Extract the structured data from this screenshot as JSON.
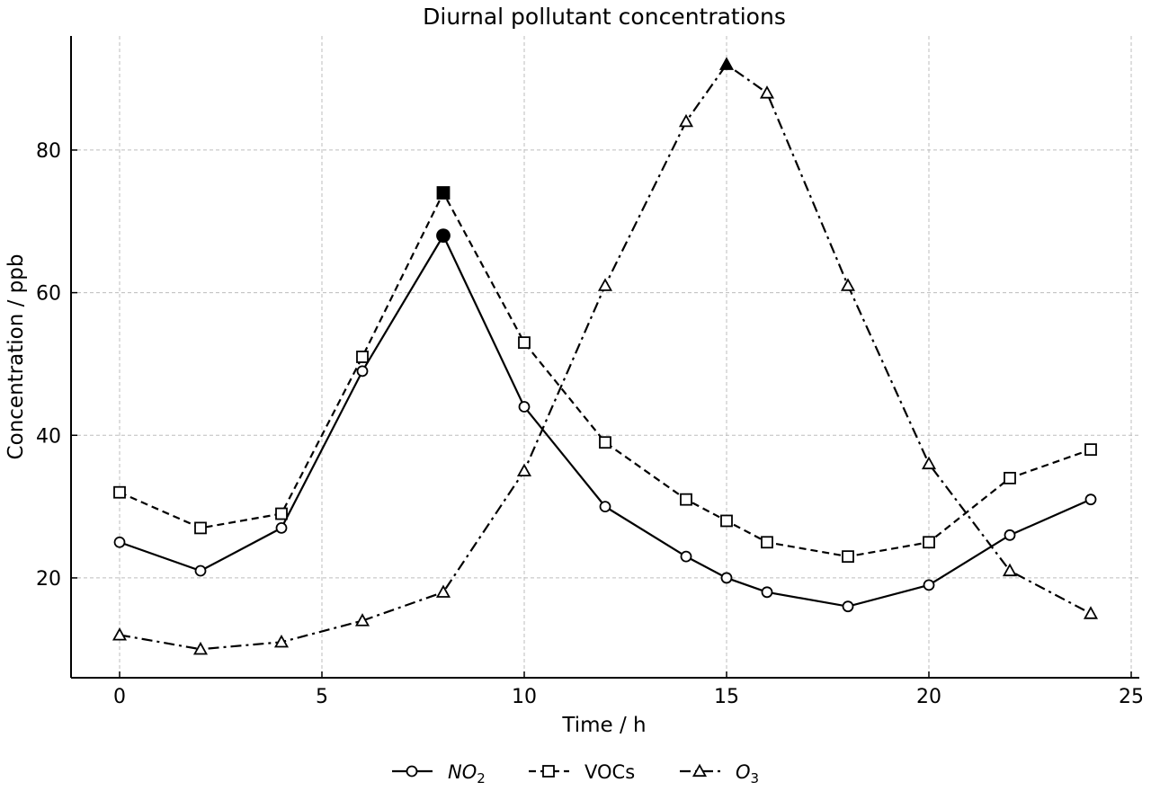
{
  "chart_data": {
    "type": "line",
    "title": "Diurnal pollutant concentrations",
    "xlabel": "Time / h",
    "ylabel": "Concentration / ppb",
    "xlim": [
      -1.2,
      25.2
    ],
    "ylim": [
      6,
      96
    ],
    "xticks": [
      0,
      5,
      10,
      15,
      20,
      25
    ],
    "yticks": [
      20,
      40,
      60,
      80
    ],
    "grid": true,
    "legend_position": "bottom-center",
    "series": [
      {
        "name": "NO",
        "name_sub": "2",
        "marker": "circle",
        "linestyle": "solid",
        "x": [
          0,
          2,
          4,
          6,
          8,
          10,
          12,
          14,
          15,
          16,
          18,
          20,
          22,
          24
        ],
        "y": [
          25,
          21,
          27,
          49,
          68,
          44,
          30,
          23,
          20,
          18,
          16,
          19,
          26,
          31
        ],
        "highlight_index": 4
      },
      {
        "name": "VOCs",
        "name_sub": "",
        "marker": "square",
        "linestyle": "dashed",
        "x": [
          0,
          2,
          4,
          6,
          8,
          10,
          12,
          14,
          15,
          16,
          18,
          20,
          22,
          24
        ],
        "y": [
          32,
          27,
          29,
          51,
          74,
          53,
          39,
          31,
          28,
          25,
          23,
          25,
          34,
          38
        ],
        "highlight_index": 4
      },
      {
        "name": "O",
        "name_sub": "3",
        "marker": "triangle",
        "linestyle": "dashdot",
        "x": [
          0,
          2,
          4,
          6,
          8,
          10,
          12,
          14,
          15,
          16,
          18,
          20,
          22,
          24
        ],
        "y": [
          12,
          10,
          11,
          14,
          18,
          35,
          61,
          84,
          92,
          88,
          61,
          36,
          21,
          15
        ],
        "highlight_index": 8
      }
    ]
  }
}
